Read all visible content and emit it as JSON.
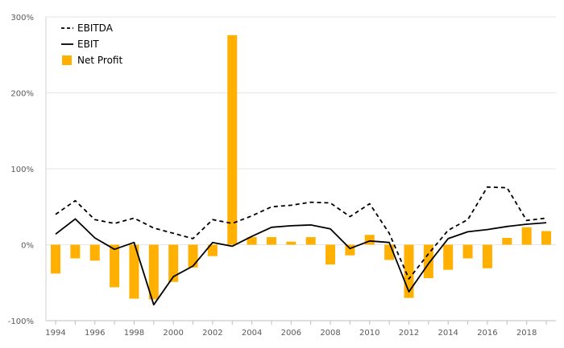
{
  "chart_data": {
    "type": "bar",
    "categories": [
      "1994",
      "1995",
      "1996",
      "1997",
      "1998",
      "1999",
      "2000",
      "2001",
      "2002",
      "2003",
      "2004",
      "2005",
      "2006",
      "2007",
      "2008",
      "2009",
      "2010",
      "2011",
      "2012",
      "2013",
      "2014",
      "2015",
      "2016",
      "2017",
      "2018",
      "2019"
    ],
    "x_tick_labels": [
      "1994",
      "1996",
      "1998",
      "2000",
      "2002",
      "2004",
      "2006",
      "2008",
      "2010",
      "2012",
      "2014",
      "2016",
      "2018"
    ],
    "y_ticks": [
      -100,
      0,
      100,
      200,
      300
    ],
    "y_tick_labels": [
      "-100%",
      "0%",
      "100%",
      "200%",
      "300%"
    ],
    "ylim": [
      -100,
      300
    ],
    "grid": "horizontal",
    "legend_position": "top-left",
    "series": [
      {
        "name": "EBITDA",
        "type": "line",
        "style": "dashed",
        "color": "#000000",
        "values": [
          40,
          58,
          33,
          28,
          35,
          22,
          15,
          8,
          33,
          28,
          38,
          50,
          52,
          56,
          55,
          37,
          54,
          15,
          -45,
          -12,
          19,
          33,
          76,
          75,
          32,
          35
        ]
      },
      {
        "name": "EBIT",
        "type": "line",
        "style": "solid",
        "color": "#000000",
        "values": [
          14,
          34,
          9,
          -6,
          3,
          -79,
          -42,
          -28,
          3,
          -2,
          11,
          23,
          25,
          26,
          21,
          -5,
          5,
          3,
          -62,
          -25,
          8,
          17,
          20,
          24,
          27,
          29
        ]
      },
      {
        "name": "Net Profit",
        "type": "bar",
        "color": "#ffb000",
        "values": [
          -38,
          -18,
          -21,
          -56,
          -71,
          -72,
          -49,
          -30,
          -15,
          276,
          10,
          10,
          4,
          10,
          -26,
          -14,
          13,
          -20,
          -70,
          -44,
          -33,
          -18,
          -31,
          9,
          23,
          18
        ]
      }
    ]
  }
}
